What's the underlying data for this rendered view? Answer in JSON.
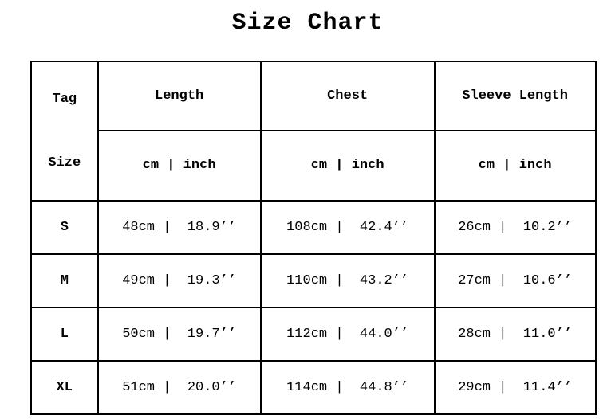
{
  "title": "Size Chart",
  "colors": {
    "background": "#ffffff",
    "text": "#000000",
    "border": "#000000"
  },
  "table": {
    "tag_header": {
      "line1": "Tag",
      "line2": "Size"
    },
    "columns": [
      {
        "label": "Length",
        "unit_header": "cm | inch"
      },
      {
        "label": "Chest",
        "unit_header": "cm | inch"
      },
      {
        "label": "Sleeve Length",
        "unit_header": "cm | inch"
      }
    ],
    "rows": [
      {
        "size": "S",
        "length": "48cm |  18.9’’",
        "chest": "108cm |  42.4’’",
        "sleeve": "26cm |  10.2’’"
      },
      {
        "size": "M",
        "length": "49cm |  19.3’’",
        "chest": "110cm |  43.2’’",
        "sleeve": "27cm |  10.6’’"
      },
      {
        "size": "L",
        "length": "50cm |  19.7’’",
        "chest": "112cm |  44.0’’",
        "sleeve": "28cm |  11.0’’"
      },
      {
        "size": "XL",
        "length": "51cm |  20.0’’",
        "chest": "114cm |  44.8’’",
        "sleeve": "29cm |  11.4’’"
      }
    ]
  }
}
